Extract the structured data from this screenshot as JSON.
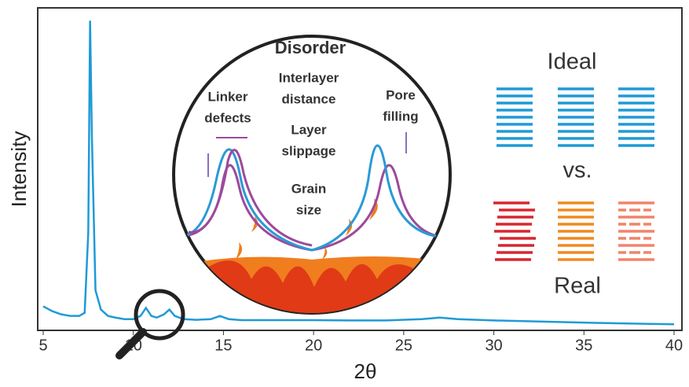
{
  "chart_data": {
    "type": "line",
    "x_label": "2θ",
    "y_label": "Intensity",
    "x": [
      5,
      5.5,
      6,
      6.5,
      7,
      7.3,
      7.5,
      7.6,
      7.7,
      7.9,
      8.2,
      8.6,
      9,
      9.5,
      10,
      10.4,
      10.7,
      11,
      11.3,
      11.7,
      12,
      12.3,
      12.8,
      13.5,
      14.3,
      14.8,
      15.3,
      16,
      18,
      20,
      22,
      24,
      26,
      27,
      28,
      30,
      33,
      36,
      38,
      40
    ],
    "series": [
      {
        "color": "#1f9ad6",
        "values": [
          7,
          5.5,
          4.5,
          4,
          4,
          5,
          30,
          96,
          60,
          12,
          6,
          4,
          3.5,
          3,
          3,
          4,
          6.5,
          4,
          3.5,
          4.5,
          6,
          4,
          3,
          2.8,
          3,
          4,
          3,
          2.7,
          2.7,
          2.7,
          2.6,
          2.6,
          3,
          3.5,
          3,
          2.6,
          2.2,
          1.8,
          1.6,
          1.4
        ]
      }
    ],
    "xlim": [
      5,
      40
    ],
    "xticks": [
      5,
      10,
      15,
      20,
      25,
      30,
      35,
      40
    ],
    "ylim": [
      0,
      100
    ],
    "annotations": {
      "disorder": "Disorder",
      "interlayer": [
        "Interlayer",
        "distance"
      ],
      "linker": [
        "Linker",
        "defects"
      ],
      "slippage": [
        "Layer",
        "slippage"
      ],
      "grain": [
        "Grain",
        "size"
      ],
      "pore": [
        "Pore",
        "filling"
      ],
      "ideal": "Ideal",
      "vs": "vs.",
      "real": "Real"
    }
  }
}
